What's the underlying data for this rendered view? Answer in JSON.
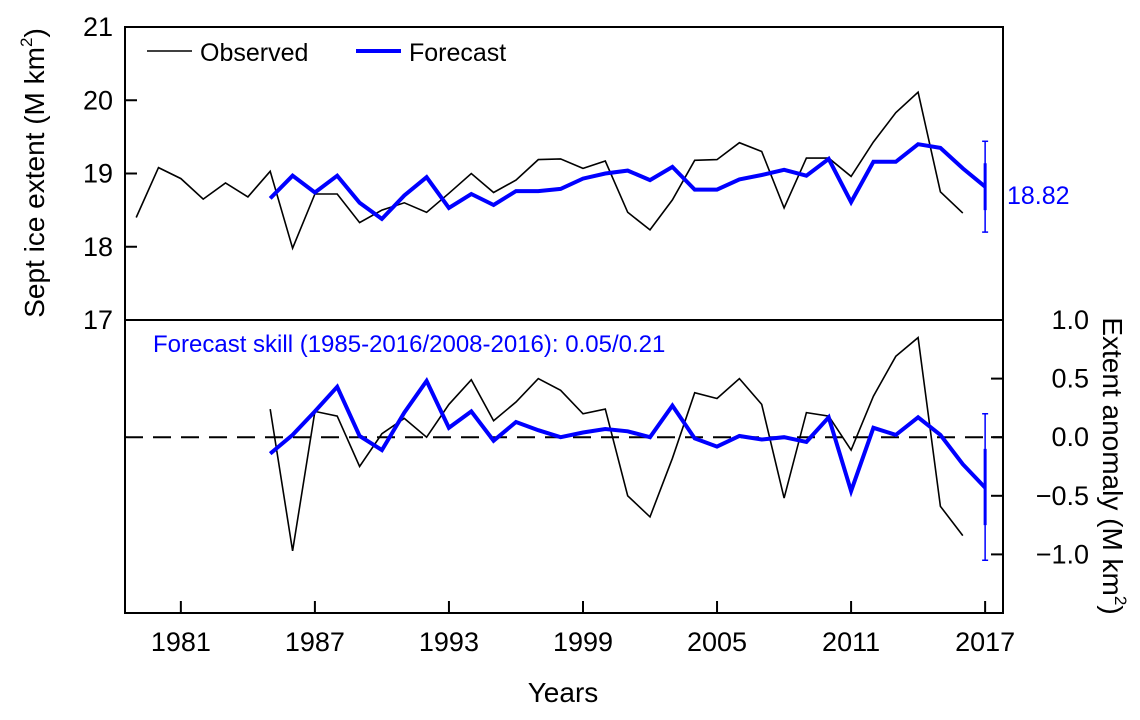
{
  "chart_data": [
    {
      "type": "line",
      "panel": "top",
      "ylabel": "Sept ice extent (M km",
      "ylabel_sup": "2",
      "ylabel_close": ")",
      "xlim": [
        1978.5,
        2017.8
      ],
      "ylim": [
        17,
        21
      ],
      "yticks": [
        17,
        18,
        19,
        20,
        21
      ],
      "grid": false,
      "legend_position": "top-left",
      "legend": [
        "Observed",
        "Forecast"
      ],
      "forecast_value_label": "18.82",
      "series": [
        {
          "name": "Observed",
          "color": "#000000",
          "x": [
            1979,
            1980,
            1981,
            1982,
            1983,
            1984,
            1985,
            1986,
            1987,
            1988,
            1989,
            1990,
            1991,
            1992,
            1993,
            1994,
            1995,
            1996,
            1997,
            1998,
            1999,
            2000,
            2001,
            2002,
            2003,
            2004,
            2005,
            2006,
            2007,
            2008,
            2009,
            2010,
            2011,
            2012,
            2013,
            2014,
            2015,
            2016
          ],
          "y": [
            18.4,
            19.08,
            18.93,
            18.65,
            18.87,
            18.68,
            19.03,
            17.98,
            18.72,
            18.72,
            18.33,
            18.5,
            18.6,
            18.47,
            18.73,
            19.0,
            18.74,
            18.91,
            19.19,
            19.2,
            19.07,
            19.17,
            18.47,
            18.23,
            18.64,
            19.18,
            19.19,
            19.42,
            19.3,
            18.53,
            19.21,
            19.21,
            18.96,
            19.43,
            19.83,
            20.11,
            18.75,
            18.46
          ]
        },
        {
          "name": "Forecast",
          "color": "#0000ff",
          "x": [
            1985,
            1986,
            1987,
            1988,
            1989,
            1990,
            1991,
            1992,
            1993,
            1994,
            1995,
            1996,
            1997,
            1998,
            1999,
            2000,
            2001,
            2002,
            2003,
            2004,
            2005,
            2006,
            2007,
            2008,
            2009,
            2010,
            2011,
            2012,
            2013,
            2014,
            2015,
            2016,
            2017
          ],
          "y": [
            18.66,
            18.97,
            18.74,
            18.97,
            18.6,
            18.38,
            18.7,
            18.95,
            18.53,
            18.72,
            18.57,
            18.76,
            18.76,
            18.79,
            18.93,
            19.0,
            19.04,
            18.91,
            19.09,
            18.78,
            18.78,
            18.92,
            18.98,
            19.05,
            18.97,
            19.2,
            18.61,
            19.16,
            19.16,
            19.4,
            19.35,
            19.07,
            18.82
          ]
        }
      ],
      "error_bar": {
        "x": 2017,
        "y": 18.82,
        "inner": [
          18.5,
          19.14
        ],
        "outer": [
          18.2,
          19.44
        ],
        "color": "#0000ff"
      }
    },
    {
      "type": "line",
      "panel": "bottom",
      "annotation": "Forecast skill (1985-2016/2008-2016): 0.05/0.21",
      "ylabel": "Extent anomaly (M km",
      "ylabel_sup": "2",
      "ylabel_close": ")",
      "xlabel": "Years",
      "xticks": [
        "1981",
        "1987",
        "1993",
        "1999",
        "2005",
        "2011",
        "2017"
      ],
      "xlim": [
        1978.5,
        2017.8
      ],
      "ylim": [
        -1.5,
        1.0
      ],
      "yticks": [
        "1.0",
        "0.5",
        "0.0",
        "−0.5",
        "−1.0"
      ],
      "ytick_values": [
        1.0,
        0.5,
        0.0,
        -0.5,
        -1.0
      ],
      "grid": false,
      "zero_line": "dashed",
      "series": [
        {
          "name": "Observed",
          "color": "#000000",
          "x": [
            1985,
            1986,
            1987,
            1988,
            1989,
            1990,
            1991,
            1992,
            1993,
            1994,
            1995,
            1996,
            1997,
            1998,
            1999,
            2000,
            2001,
            2002,
            2003,
            2004,
            2005,
            2006,
            2007,
            2008,
            2009,
            2010,
            2011,
            2012,
            2013,
            2014,
            2015,
            2016
          ],
          "y": [
            0.24,
            -0.97,
            0.22,
            0.18,
            -0.25,
            0.03,
            0.16,
            0.0,
            0.28,
            0.49,
            0.14,
            0.3,
            0.5,
            0.4,
            0.2,
            0.24,
            -0.5,
            -0.68,
            -0.18,
            0.38,
            0.33,
            0.5,
            0.28,
            -0.52,
            0.21,
            0.18,
            -0.11,
            0.35,
            0.69,
            0.85,
            -0.59,
            -0.84
          ]
        },
        {
          "name": "Forecast",
          "color": "#0000ff",
          "x": [
            1985,
            1986,
            1987,
            1988,
            1989,
            1990,
            1991,
            1992,
            1993,
            1994,
            1995,
            1996,
            1997,
            1998,
            1999,
            2000,
            2001,
            2002,
            2003,
            2004,
            2005,
            2006,
            2007,
            2008,
            2009,
            2010,
            2011,
            2012,
            2013,
            2014,
            2015,
            2016,
            2017
          ],
          "y": [
            -0.14,
            0.02,
            0.22,
            0.43,
            0.01,
            -0.11,
            0.21,
            0.48,
            0.08,
            0.22,
            -0.03,
            0.13,
            0.06,
            0.0,
            0.04,
            0.07,
            0.05,
            0.0,
            0.27,
            -0.01,
            -0.08,
            0.01,
            -0.02,
            0.0,
            -0.04,
            0.17,
            -0.46,
            0.08,
            0.02,
            0.17,
            0.02,
            -0.23,
            -0.43
          ]
        }
      ],
      "error_bar": {
        "x": 2017,
        "y": -0.43,
        "inner": [
          -0.75,
          -0.1
        ],
        "outer": [
          -1.05,
          0.2
        ],
        "color": "#0000ff"
      }
    }
  ]
}
